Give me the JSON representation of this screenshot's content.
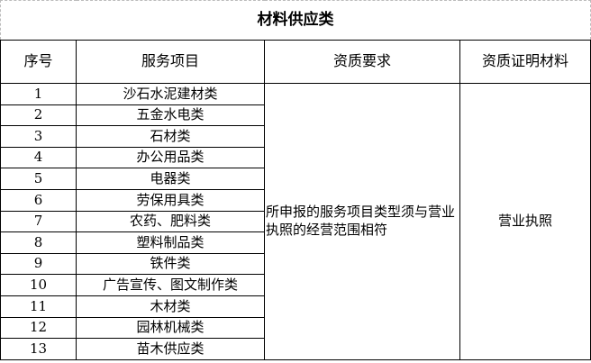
{
  "header": {
    "title": "材料供应类"
  },
  "table": {
    "columns": [
      "序号",
      "服务项目",
      "资质要求",
      "资质证明材料"
    ],
    "rows": [
      [
        "1",
        "沙石水泥建材类"
      ],
      [
        "2",
        "五金水电类"
      ],
      [
        "3",
        "石材类"
      ],
      [
        "4",
        "办公用品类"
      ],
      [
        "5",
        "电器类"
      ],
      [
        "6",
        "劳保用具类"
      ],
      [
        "7",
        "农药、肥料类"
      ],
      [
        "8",
        "塑料制品类"
      ],
      [
        "9",
        "铁件类"
      ],
      [
        "10",
        "广告宣传、图文制作类"
      ],
      [
        "11",
        "木材类"
      ],
      [
        "12",
        "园林机械类"
      ],
      [
        "13",
        "苗木供应类"
      ]
    ],
    "requirement": "所申报的服务项目类型须与营业执照的经营范围相符",
    "certificate": "营业执照"
  }
}
